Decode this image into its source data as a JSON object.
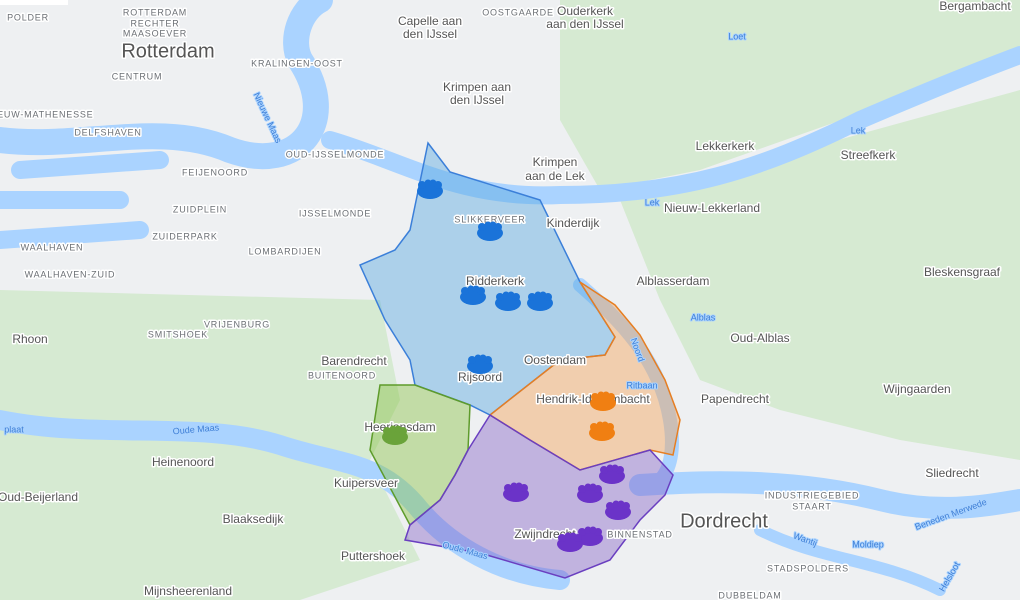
{
  "map": {
    "labels": [
      "POLDER",
      "ROTTERDAM",
      "RECHTER",
      "MAASOEVER",
      "Rotterdam",
      "CENTRUM",
      "NIEUW-MATHENESSE",
      "DELFSHAVEN",
      "Nieuwe Maas",
      "KRALINGEN-OOST",
      "Capelle aan",
      "den IJssel",
      "OOSTGAARDE",
      "Ouderkerk",
      "aan den IJssel",
      "Bergambacht",
      "Loet",
      "Krimpen aan",
      "den IJssel",
      "OUD-IJSSELMONDE",
      "FEIJENOORD",
      "Krimpen",
      "aan de Lek",
      "Lekkerkerk",
      "Streefkerk",
      "Lek",
      "Lek",
      "Kinderdijk",
      "Nieuw-Lekkerland",
      "ZUIDPLEIN",
      "IJSSELMONDE",
      "ZUIDERPARK",
      "LOMBARDIJEN",
      "WAALHAVEN",
      "WAALHAVEN-ZUID",
      "SLIKKERVEER",
      "Ridderkerk",
      "Alblasserdam",
      "Bleskensgraaf",
      "Rhoon",
      "VRIJENBURG",
      "SMITSHOEK",
      "Barendrecht",
      "BUITENOORD",
      "Oostendam",
      "Rijsoord",
      "Alblas",
      "Oud-Alblas",
      "Ritbaan",
      "Hendrik-Ido-Ambacht",
      "Papendrecht",
      "Wijngaarden",
      "Oude Maas",
      "Heerjansdam",
      "plaat",
      "Heinenoord",
      "Sliedrecht",
      "Kuipersveer",
      "Oud-Beijerland",
      "INDUSTRIEGEBIED",
      "STAART",
      "Beneden Merwede",
      "Blaaksedijk",
      "Dordrecht",
      "Zwijndrecht",
      "BINNENSTAD",
      "Wantij",
      "Moldiep",
      "Oude Maas",
      "Puttershoek",
      "STADSPOLDERS",
      "Helsloot",
      "Mijnsheerenland",
      "DUBBELDAM",
      "Noord"
    ]
  }
}
